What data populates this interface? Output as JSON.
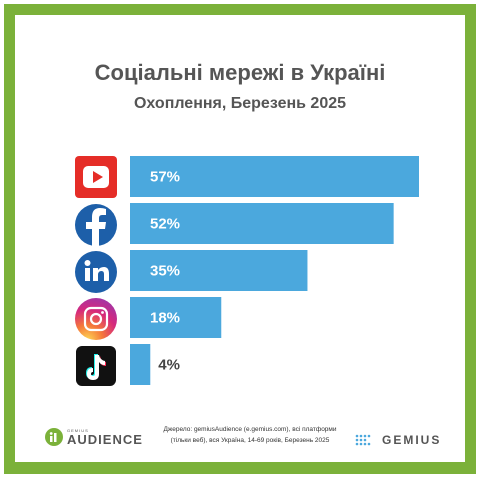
{
  "header": {
    "title": "Соціальні мережі в Україні",
    "subtitle": "Охоплення, Березень 2025"
  },
  "chart_data": {
    "type": "bar",
    "orientation": "horizontal",
    "categories": [
      "YouTube",
      "Facebook",
      "LinkedIn",
      "Instagram",
      "TikTok"
    ],
    "category_icons": [
      "youtube-icon",
      "facebook-icon",
      "linkedin-icon",
      "instagram-icon",
      "tiktok-icon"
    ],
    "values": [
      57,
      52,
      35,
      18,
      4
    ],
    "value_labels": [
      "57%",
      "52%",
      "35%",
      "18%",
      "4%"
    ],
    "unit": "%",
    "xlim": [
      0,
      57
    ],
    "grid": false,
    "legend": "none",
    "bar_color": "#4ba8dd"
  },
  "footer": {
    "brand_small": "GEMIUS",
    "brand_big": "AUDIENCE",
    "source_line1": "Джерело: gemiusAudience (e.gemius.com), всі платформи",
    "source_line2": "(тільки веб), вся Україна, 14-69 років, Березень 2025",
    "partner_logo": "GEMIUS"
  },
  "colors": {
    "frame": "#7bb13a",
    "bar": "#4ba8dd",
    "title": "#555555",
    "youtube": "#e52d27",
    "facebook": "#1d5fa9",
    "linkedin": "#1d5fa9",
    "tiktok": "#111111"
  }
}
